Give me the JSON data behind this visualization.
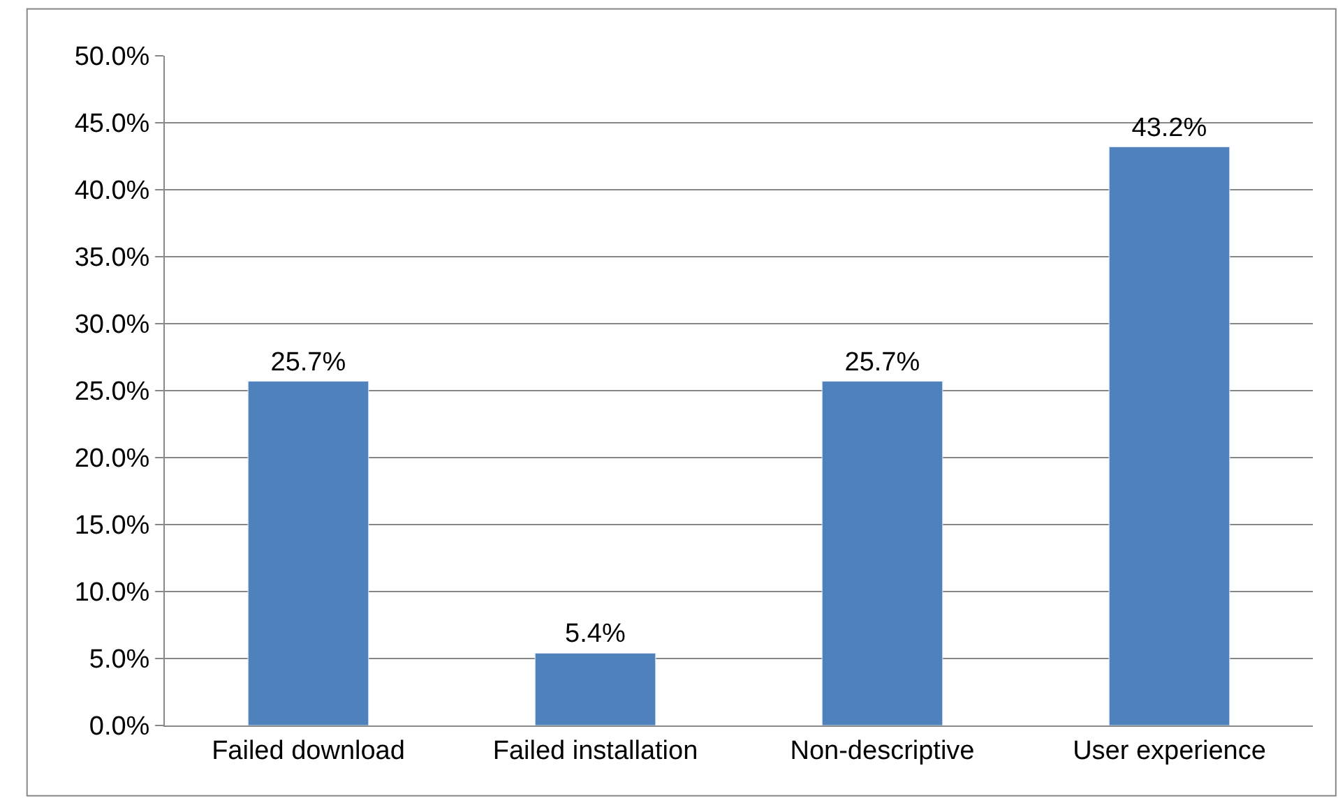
{
  "chart_data": {
    "type": "bar",
    "categories": [
      "Failed download",
      "Failed installation",
      "Non-descriptive",
      "User experience"
    ],
    "values": [
      25.7,
      5.4,
      25.7,
      43.2
    ],
    "value_labels": [
      "25.7%",
      "5.4%",
      "25.7%",
      "43.2%"
    ],
    "color": "#4f81bd",
    "ylim": [
      0,
      50
    ],
    "yticks": [
      {
        "value": 0,
        "label": "0.0%"
      },
      {
        "value": 5,
        "label": "5.0%"
      },
      {
        "value": 10,
        "label": "10.0%"
      },
      {
        "value": 15,
        "label": "15.0%"
      },
      {
        "value": 20,
        "label": "20.0%"
      },
      {
        "value": 25,
        "label": "25.0%"
      },
      {
        "value": 30,
        "label": "30.0%"
      },
      {
        "value": 35,
        "label": "35.0%"
      },
      {
        "value": 40,
        "label": "40.0%"
      },
      {
        "value": 45,
        "label": "45.0%"
      },
      {
        "value": 50,
        "label": "50.0%"
      }
    ],
    "grid": "y",
    "legend": false
  }
}
